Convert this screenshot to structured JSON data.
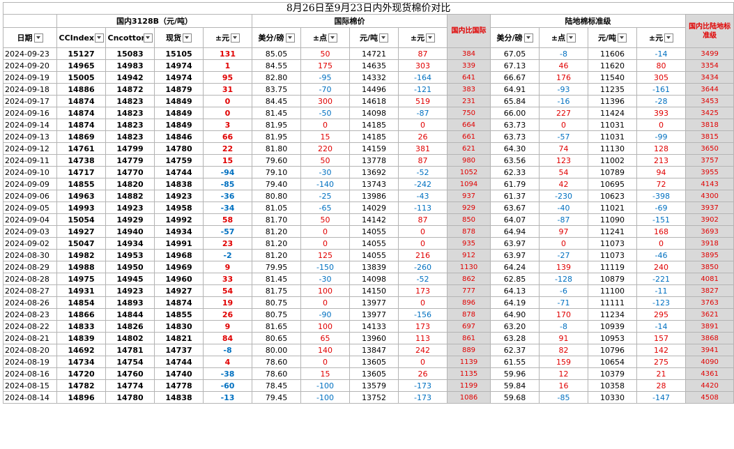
{
  "title": "8月26日至9月23日内外现货棉价对比",
  "groups": {
    "domestic": "国内3128B（元/吨）",
    "intl": "国际棉价",
    "compare": "国内比国际",
    "land": "陆地棉标准级",
    "compare2": "国内比陆地标准级"
  },
  "headers": [
    "日期",
    "CCIndex",
    "Cncotton",
    "现货",
    "±元",
    "美分/磅",
    "±点",
    "元/吨",
    "±元",
    "国内比国际",
    "美分/磅",
    "±点",
    "元/吨",
    "±元",
    "国内比陆地标准级"
  ],
  "rows": [
    [
      "2024-09-23",
      "15127",
      "15083",
      "15105",
      "131",
      "85.05",
      "50",
      "14721",
      "87",
      "384",
      "67.05",
      "-8",
      "11606",
      "-14",
      "3499"
    ],
    [
      "2024-09-20",
      "14965",
      "14983",
      "14974",
      "1",
      "84.55",
      "175",
      "14635",
      "303",
      "339",
      "67.13",
      "46",
      "11620",
      "80",
      "3354"
    ],
    [
      "2024-09-19",
      "15005",
      "14942",
      "14974",
      "95",
      "82.80",
      "-95",
      "14332",
      "-164",
      "641",
      "66.67",
      "176",
      "11540",
      "305",
      "3434"
    ],
    [
      "2024-09-18",
      "14886",
      "14872",
      "14879",
      "31",
      "83.75",
      "-70",
      "14496",
      "-121",
      "383",
      "64.91",
      "-93",
      "11235",
      "-161",
      "3644"
    ],
    [
      "2024-09-17",
      "14874",
      "14823",
      "14849",
      "0",
      "84.45",
      "300",
      "14618",
      "519",
      "231",
      "65.84",
      "-16",
      "11396",
      "-28",
      "3453"
    ],
    [
      "2024-09-16",
      "14874",
      "14823",
      "14849",
      "0",
      "81.45",
      "-50",
      "14098",
      "-87",
      "750",
      "66.00",
      "227",
      "11424",
      "393",
      "3425"
    ],
    [
      "2024-09-14",
      "14874",
      "14823",
      "14849",
      "3",
      "81.95",
      "0",
      "14185",
      "0",
      "664",
      "63.73",
      "0",
      "11031",
      "0",
      "3818"
    ],
    [
      "2024-09-13",
      "14869",
      "14823",
      "14846",
      "66",
      "81.95",
      "15",
      "14185",
      "26",
      "661",
      "63.73",
      "-57",
      "11031",
      "-99",
      "3815"
    ],
    [
      "2024-09-12",
      "14761",
      "14799",
      "14780",
      "22",
      "81.80",
      "220",
      "14159",
      "381",
      "621",
      "64.30",
      "74",
      "11130",
      "128",
      "3650"
    ],
    [
      "2024-09-11",
      "14738",
      "14779",
      "14759",
      "15",
      "79.60",
      "50",
      "13778",
      "87",
      "980",
      "63.56",
      "123",
      "11002",
      "213",
      "3757"
    ],
    [
      "2024-09-10",
      "14717",
      "14770",
      "14744",
      "-94",
      "79.10",
      "-30",
      "13692",
      "-52",
      "1052",
      "62.33",
      "54",
      "10789",
      "94",
      "3955"
    ],
    [
      "2024-09-09",
      "14855",
      "14820",
      "14838",
      "-85",
      "79.40",
      "-140",
      "13743",
      "-242",
      "1094",
      "61.79",
      "42",
      "10695",
      "72",
      "4143"
    ],
    [
      "2024-09-06",
      "14963",
      "14882",
      "14923",
      "-36",
      "80.80",
      "-25",
      "13986",
      "-43",
      "937",
      "61.37",
      "-230",
      "10623",
      "-398",
      "4300"
    ],
    [
      "2024-09-05",
      "14993",
      "14923",
      "14958",
      "-34",
      "81.05",
      "-65",
      "14029",
      "-113",
      "929",
      "63.67",
      "-40",
      "11021",
      "-69",
      "3937"
    ],
    [
      "2024-09-04",
      "15054",
      "14929",
      "14992",
      "58",
      "81.70",
      "50",
      "14142",
      "87",
      "850",
      "64.07",
      "-87",
      "11090",
      "-151",
      "3902"
    ],
    [
      "2024-09-03",
      "14927",
      "14940",
      "14934",
      "-57",
      "81.20",
      "0",
      "14055",
      "0",
      "878",
      "64.94",
      "97",
      "11241",
      "168",
      "3693"
    ],
    [
      "2024-09-02",
      "15047",
      "14934",
      "14991",
      "23",
      "81.20",
      "0",
      "14055",
      "0",
      "935",
      "63.97",
      "0",
      "11073",
      "0",
      "3918"
    ],
    [
      "2024-08-30",
      "14982",
      "14953",
      "14968",
      "-2",
      "81.20",
      "125",
      "14055",
      "216",
      "912",
      "63.97",
      "-27",
      "11073",
      "-46",
      "3895"
    ],
    [
      "2024-08-29",
      "14988",
      "14950",
      "14969",
      "9",
      "79.95",
      "-150",
      "13839",
      "-260",
      "1130",
      "64.24",
      "139",
      "11119",
      "240",
      "3850"
    ],
    [
      "2024-08-28",
      "14975",
      "14945",
      "14960",
      "33",
      "81.45",
      "-30",
      "14098",
      "-52",
      "862",
      "62.85",
      "-128",
      "10879",
      "-221",
      "4081"
    ],
    [
      "2024-08-27",
      "14931",
      "14923",
      "14927",
      "54",
      "81.75",
      "100",
      "14150",
      "173",
      "777",
      "64.13",
      "-6",
      "11100",
      "-11",
      "3827"
    ],
    [
      "2024-08-26",
      "14854",
      "14893",
      "14874",
      "19",
      "80.75",
      "0",
      "13977",
      "0",
      "896",
      "64.19",
      "-71",
      "11111",
      "-123",
      "3763"
    ],
    [
      "2024-08-23",
      "14866",
      "14844",
      "14855",
      "26",
      "80.75",
      "-90",
      "13977",
      "-156",
      "878",
      "64.90",
      "170",
      "11234",
      "295",
      "3621"
    ],
    [
      "2024-08-22",
      "14833",
      "14826",
      "14830",
      "9",
      "81.65",
      "100",
      "14133",
      "173",
      "697",
      "63.20",
      "-8",
      "10939",
      "-14",
      "3891"
    ],
    [
      "2024-08-21",
      "14839",
      "14802",
      "14821",
      "84",
      "80.65",
      "65",
      "13960",
      "113",
      "861",
      "63.28",
      "91",
      "10953",
      "157",
      "3868"
    ],
    [
      "2024-08-20",
      "14692",
      "14781",
      "14737",
      "-8",
      "80.00",
      "140",
      "13847",
      "242",
      "889",
      "62.37",
      "82",
      "10796",
      "142",
      "3941"
    ],
    [
      "2024-08-19",
      "14734",
      "14754",
      "14744",
      "4",
      "78.60",
      "0",
      "13605",
      "0",
      "1139",
      "61.55",
      "159",
      "10654",
      "275",
      "4090"
    ],
    [
      "2024-08-16",
      "14720",
      "14760",
      "14740",
      "-38",
      "78.60",
      "15",
      "13605",
      "26",
      "1135",
      "59.96",
      "12",
      "10379",
      "21",
      "4361"
    ],
    [
      "2024-08-15",
      "14782",
      "14774",
      "14778",
      "-60",
      "78.45",
      "-100",
      "13579",
      "-173",
      "1199",
      "59.84",
      "16",
      "10358",
      "28",
      "4420"
    ],
    [
      "2024-08-14",
      "14896",
      "14780",
      "14838",
      "-13",
      "79.45",
      "-100",
      "13752",
      "-173",
      "1086",
      "59.68",
      "-85",
      "10330",
      "-147",
      "4508"
    ]
  ],
  "colors": {
    "positive": "#e00000",
    "negative": "#0070c0",
    "shaded": "#d9d9d9"
  }
}
